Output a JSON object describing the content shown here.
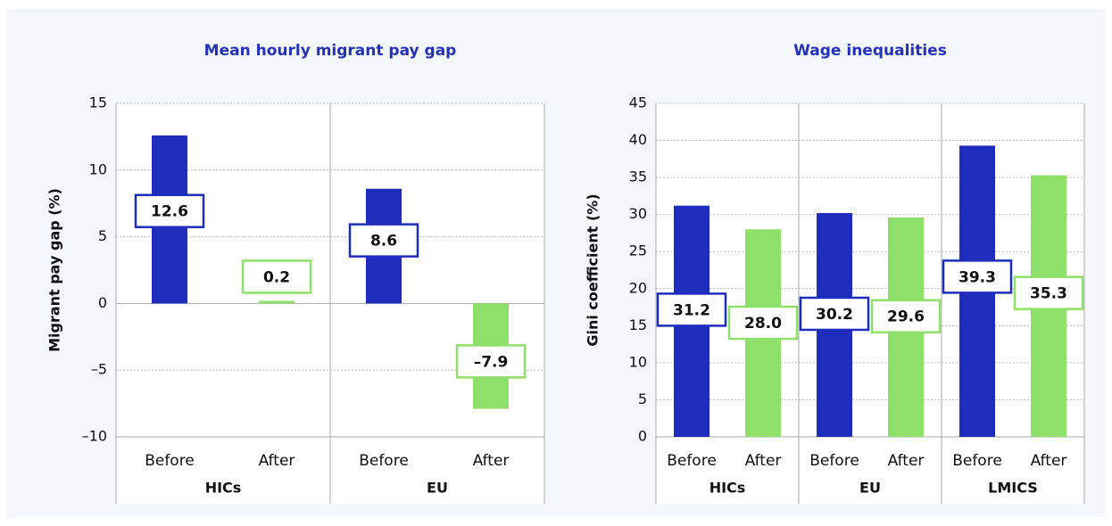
{
  "chart_data": [
    {
      "type": "bar",
      "title": "Mean hourly migrant pay gap",
      "y_label": "Migrant pay gap (%)",
      "categories": [
        "Before",
        "After",
        "Before",
        "After"
      ],
      "groups": [
        "HICs",
        "EU"
      ],
      "values": [
        12.6,
        0.2,
        8.6,
        -7.9
      ],
      "value_labels": [
        "12.6",
        "0.2",
        "8.6",
        "–7.9"
      ],
      "colors": [
        "#1f2dbd",
        "#8ee06a",
        "#1f2dbd",
        "#8ee06a"
      ],
      "ylim": [
        -10,
        15
      ],
      "yticks": [
        {
          "value": -10,
          "label": "–10"
        },
        {
          "value": -5,
          "label": "–5"
        },
        0,
        5,
        10,
        15
      ],
      "grid": true
    },
    {
      "type": "bar",
      "title": "Wage inequalities",
      "y_label": "Gini coefficient (%)",
      "categories": [
        "Before",
        "After",
        "Before",
        "After",
        "Before",
        "After"
      ],
      "groups": [
        "HICs",
        "EU",
        "LMICS"
      ],
      "values": [
        31.2,
        28.0,
        30.2,
        29.6,
        39.3,
        35.3
      ],
      "value_labels": [
        "31.2",
        "28.0",
        "30.2",
        "29.6",
        "39.3",
        "35.3"
      ],
      "colors": [
        "#1f2dbd",
        "#8ee06a",
        "#1f2dbd",
        "#8ee06a",
        "#1f2dbd",
        "#8ee06a"
      ],
      "ylim": [
        0,
        45
      ],
      "yticks": [
        0,
        5,
        10,
        15,
        20,
        25,
        30,
        35,
        40,
        45
      ],
      "grid": true
    }
  ]
}
